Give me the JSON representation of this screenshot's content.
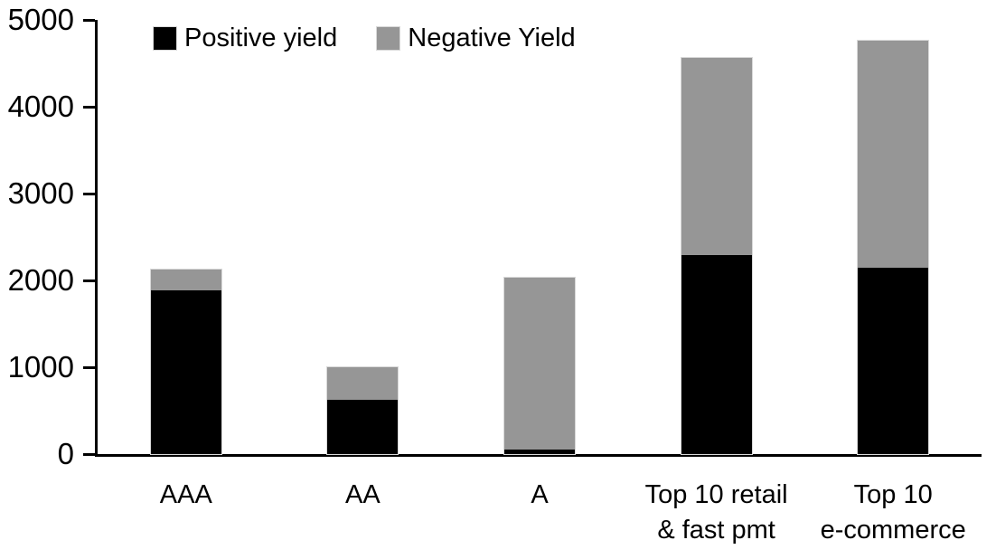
{
  "chart_data": {
    "type": "bar",
    "stacked": true,
    "title": "",
    "xlabel": "",
    "ylabel": "",
    "categories": [
      "AAA",
      "AA",
      "A",
      "Top 10 retail\n& fast pmt",
      "Top 10\ne-commerce"
    ],
    "series": [
      {
        "name": "Positive yield",
        "color": "#000000",
        "values": [
          1890,
          620,
          50,
          2290,
          2150
        ]
      },
      {
        "name": "Negative Yield",
        "color": "#969696",
        "values": [
          230,
          380,
          1980,
          2270,
          2610
        ]
      }
    ],
    "totals": [
      2120,
      1000,
      2030,
      4560,
      4760
    ],
    "ylim": [
      0,
      5000
    ],
    "yticks": [
      0,
      1000,
      2000,
      3000,
      4000,
      5000
    ],
    "grid": false,
    "legend_position": "top",
    "axis_color": "#000000",
    "background_color": "#ffffff"
  }
}
